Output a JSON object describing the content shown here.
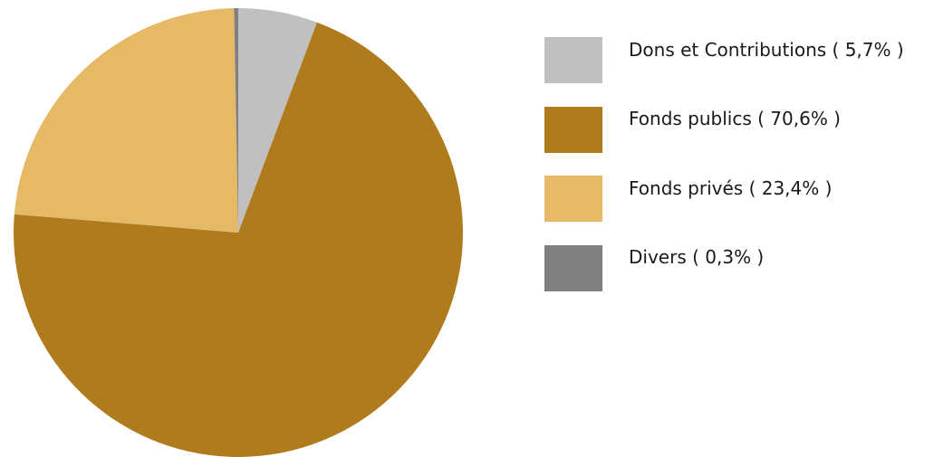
{
  "chart_data": {
    "type": "pie",
    "title": "",
    "slices": [
      {
        "label": "Dons et Contributions ( 5,7% )",
        "value": 5.7,
        "color": "#c0c0c0"
      },
      {
        "label": "Fonds publics ( 70,6% )",
        "value": 70.6,
        "color": "#b07b1c"
      },
      {
        "label": "Fonds privés ( 23,4% )",
        "value": 23.4,
        "color": "#e6b966"
      },
      {
        "label": "Divers ( 0,3% )",
        "value": 0.3,
        "color": "#808080"
      }
    ],
    "start_angle": "top",
    "direction": "clockwise",
    "legend_position": "right"
  },
  "legend": {
    "items": [
      {
        "label": "Dons et Contributions ( 5,7% )",
        "color": "#c0c0c0"
      },
      {
        "label": "Fonds publics ( 70,6% )",
        "color": "#b07b1c"
      },
      {
        "label": "Fonds privés ( 23,4% )",
        "color": "#e6b966"
      },
      {
        "label": "Divers ( 0,3% )",
        "color": "#808080"
      }
    ]
  }
}
